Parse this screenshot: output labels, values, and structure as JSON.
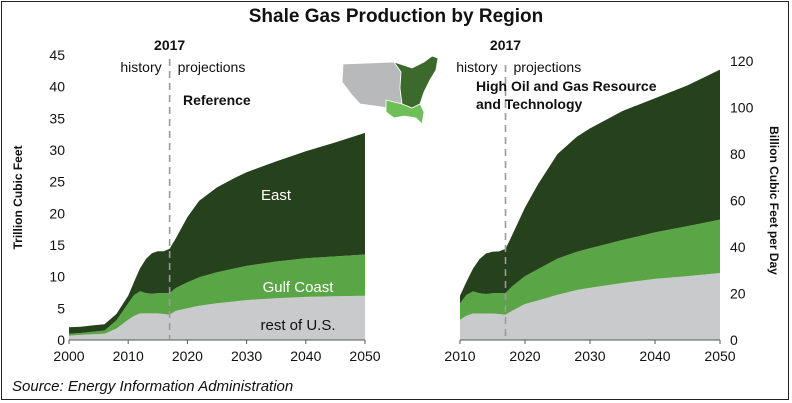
{
  "title": "Shale Gas Production by Region",
  "source": "Source: Energy Information Administration",
  "colors": {
    "east": "#26421d",
    "gulf_coast": "#5aa647",
    "rest_of_us": "#c9cacc",
    "divider": "#9a9a9a",
    "map_east": "#3c6a2c",
    "map_gulf": "#6fbf59",
    "map_rest": "#b8b9bb"
  },
  "map": {
    "icon": "us-map-regions-icon"
  },
  "chart_data": [
    {
      "type": "area",
      "subtitle": "Reference",
      "ylabel": "Trillion Cubic Feet",
      "xlim": [
        2000,
        2050
      ],
      "ylim": [
        0,
        45
      ],
      "yticks": [
        "0",
        "5",
        "10",
        "15",
        "20",
        "25",
        "30",
        "35",
        "40",
        "45"
      ],
      "xticks": [
        "2000",
        "2010",
        "2020",
        "2030",
        "2040",
        "2050"
      ],
      "divider_year": 2017,
      "divider_label": "2017",
      "history_label": "history",
      "projections_label": "projections",
      "stacked": true,
      "x": [
        2000,
        2002,
        2004,
        2006,
        2008,
        2010,
        2011,
        2012,
        2013,
        2014,
        2015,
        2016,
        2017,
        2018,
        2020,
        2022,
        2025,
        2028,
        2030,
        2035,
        2040,
        2045,
        2050
      ],
      "series": [
        {
          "name": "rest of U.S.",
          "values": [
            0.7,
            0.8,
            0.9,
            1.0,
            1.8,
            3.2,
            3.8,
            4.2,
            4.2,
            4.2,
            4.2,
            4.1,
            4.0,
            4.6,
            5.0,
            5.4,
            5.8,
            6.1,
            6.3,
            6.6,
            6.8,
            6.9,
            7.0
          ]
        },
        {
          "name": "Gulf Coast",
          "values": [
            0.3,
            0.3,
            0.4,
            0.5,
            1.3,
            2.6,
            3.3,
            3.5,
            3.2,
            3.1,
            3.2,
            3.3,
            3.4,
            3.6,
            4.1,
            4.5,
            4.9,
            5.2,
            5.4,
            5.8,
            6.1,
            6.3,
            6.5
          ]
        },
        {
          "name": "East",
          "values": [
            1.0,
            1.0,
            1.0,
            1.0,
            1.0,
            1.2,
            2.1,
            3.6,
            5.4,
            6.4,
            6.6,
            6.6,
            7.0,
            7.8,
            10.3,
            12.1,
            13.4,
            14.3,
            14.8,
            15.8,
            16.9,
            18.0,
            19.2
          ]
        }
      ]
    },
    {
      "type": "area",
      "subtitle": "High Oil and Gas Resource and Technology",
      "subtitle_lines": [
        "High Oil and Gas Resource",
        "and Technology"
      ],
      "ylabel": "Billion Cubic Feet per Day",
      "xlim": [
        2010,
        2050
      ],
      "ylim": [
        0,
        120
      ],
      "yticks": [
        "0",
        "20",
        "40",
        "60",
        "80",
        "100",
        "120"
      ],
      "xticks": [
        "2010",
        "2020",
        "2030",
        "2040",
        "2050"
      ],
      "divider_year": 2017,
      "divider_label": "2017",
      "history_label": "history",
      "projections_label": "projections",
      "stacked": true,
      "x": [
        2010,
        2011,
        2012,
        2013,
        2014,
        2015,
        2016,
        2017,
        2018,
        2020,
        2022,
        2025,
        2028,
        2030,
        2035,
        2040,
        2045,
        2050
      ],
      "series": [
        {
          "name": "rest of U.S.",
          "values": [
            8.7,
            10.4,
            11.4,
            11.4,
            11.4,
            11.4,
            11.2,
            10.9,
            12.5,
            15.5,
            17.0,
            19.5,
            21.5,
            22.5,
            24.5,
            26.3,
            27.5,
            28.8
          ]
        },
        {
          "name": "Gulf Coast",
          "values": [
            7.1,
            9.0,
            9.5,
            8.7,
            8.4,
            8.7,
            9.0,
            9.3,
            10.5,
            12.0,
            13.5,
            15.5,
            16.5,
            17.0,
            18.5,
            20.0,
            21.5,
            23.0
          ]
        },
        {
          "name": "East",
          "values": [
            3.2,
            5.7,
            9.8,
            14.7,
            17.4,
            17.9,
            17.9,
            19.0,
            22.0,
            29.5,
            36.5,
            45.0,
            49.5,
            51.5,
            55.5,
            57.7,
            60.5,
            64.5
          ]
        }
      ]
    }
  ],
  "labels": {
    "east": "East",
    "gulf_coast": "Gulf Coast",
    "rest_of_us": "rest of U.S."
  }
}
